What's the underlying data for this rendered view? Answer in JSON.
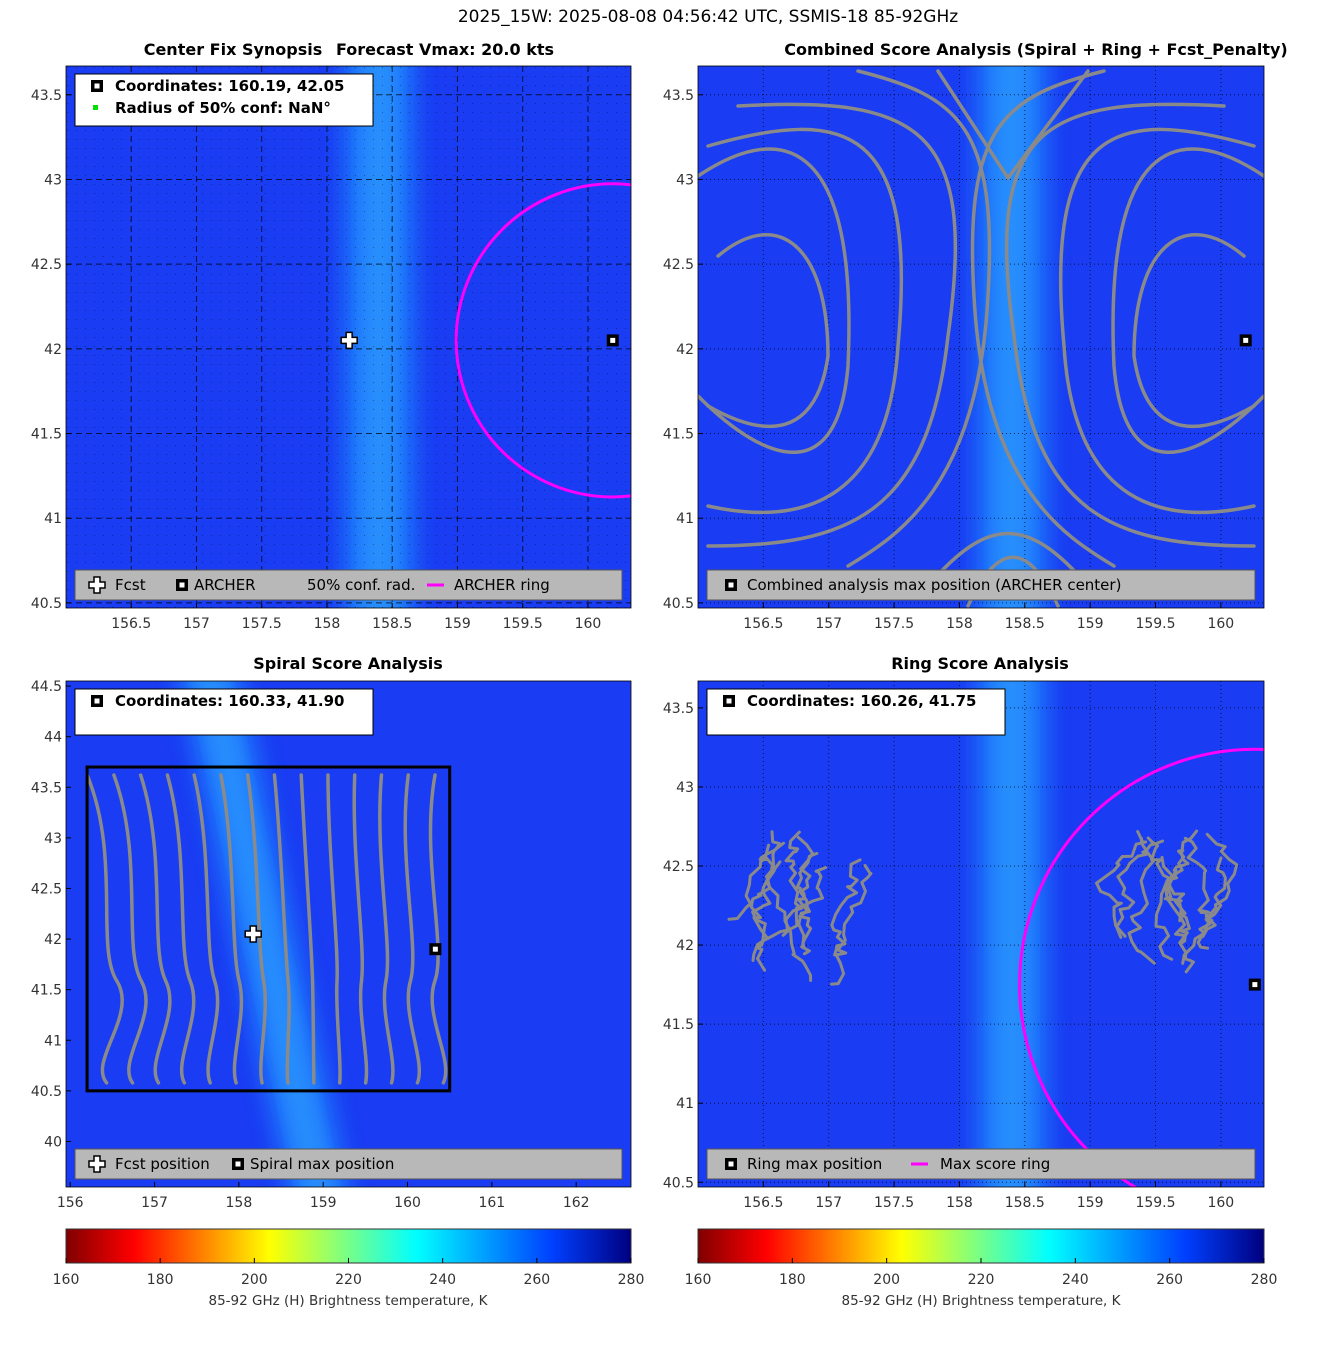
{
  "figure": {
    "title": "2025_15W: 2025-08-08 04:56:42 UTC, SSMIS-18 85-92GHz"
  },
  "colors": {
    "ring": "#ff00ff",
    "contour": "#8a8a8a",
    "field_base": "#1a3cf2",
    "field_warm_band": "#1f8fff",
    "legend_bg": "#b8b8b8",
    "green_dot": "#00e000"
  },
  "chart_data": [
    {
      "type": "heatmap",
      "id": "center_fix",
      "title_left": "Center Fix Synopsis",
      "title_right": "Forecast Vmax: 20.0 kts",
      "xlim": [
        156.0,
        160.33
      ],
      "ylim": [
        40.47,
        43.67
      ],
      "xticks": [
        "156.5",
        "157",
        "157.5",
        "158",
        "158.5",
        "159",
        "159.5",
        "160"
      ],
      "yticks": [
        "40.5",
        "41",
        "41.5",
        "42",
        "42.5",
        "43",
        "43.5"
      ],
      "grid": true,
      "band_center_lon": 158.4,
      "info_lines": [
        "Coordinates: 160.19, 42.05",
        "Radius of 50% conf: NaN°"
      ],
      "legend": [
        "Fcst",
        "ARCHER",
        "50% conf. rad.",
        "ARCHER ring"
      ],
      "fcst_marker": [
        158.17,
        42.05
      ],
      "archer_marker": [
        160.19,
        42.05
      ],
      "ring": {
        "center": [
          160.19,
          42.05
        ],
        "radius_deg": 1.2
      }
    },
    {
      "type": "heatmap",
      "id": "combined",
      "title": "Combined Score Analysis (Spiral + Ring + Fcst_Penalty)",
      "xlim": [
        156.0,
        160.33
      ],
      "ylim": [
        40.47,
        43.67
      ],
      "xticks": [
        "156.5",
        "157",
        "157.5",
        "158",
        "158.5",
        "159",
        "159.5",
        "160"
      ],
      "yticks": [
        "40.5",
        "41",
        "41.5",
        "42",
        "42.5",
        "43",
        "43.5"
      ],
      "grid": true,
      "band_center_lon": 158.4,
      "legend": [
        "Combined analysis max position (ARCHER center)"
      ],
      "archer_marker": [
        160.19,
        42.05
      ],
      "contours": "saddle"
    },
    {
      "type": "heatmap",
      "id": "spiral",
      "title": "Spiral Score Analysis",
      "xlim": [
        155.95,
        162.65
      ],
      "ylim": [
        39.55,
        44.55
      ],
      "xticks": [
        "156",
        "157",
        "158",
        "159",
        "160",
        "161",
        "162"
      ],
      "yticks": [
        "40",
        "40.5",
        "41",
        "41.5",
        "42",
        "42.5",
        "43",
        "43.5",
        "44",
        "44.5"
      ],
      "grid": false,
      "band_center_lon": 158.3,
      "info_lines": [
        "Coordinates: 160.33, 41.90"
      ],
      "legend": [
        "Fcst position",
        "Spiral max position"
      ],
      "fcst_marker": [
        158.17,
        42.05
      ],
      "spiral_marker": [
        160.33,
        41.9
      ],
      "box": {
        "lon": [
          156.2,
          160.5
        ],
        "lat": [
          40.5,
          43.7
        ]
      },
      "contours": "vertical"
    },
    {
      "type": "heatmap",
      "id": "ring",
      "title": "Ring Score Analysis",
      "xlim": [
        156.0,
        160.33
      ],
      "ylim": [
        40.47,
        43.67
      ],
      "xticks": [
        "156.5",
        "157",
        "157.5",
        "158",
        "158.5",
        "159",
        "159.5",
        "160"
      ],
      "yticks": [
        "40.5",
        "41",
        "41.5",
        "42",
        "42.5",
        "43",
        "43.5"
      ],
      "grid": true,
      "band_center_lon": 158.4,
      "info_lines": [
        "Coordinates: 160.26, 41.75"
      ],
      "legend": [
        "Ring max position",
        "Max score ring"
      ],
      "ring_marker": [
        160.26,
        41.75
      ],
      "ring": {
        "center": [
          160.26,
          41.75
        ],
        "radius_deg": 1.8
      },
      "contours": "noisy"
    }
  ],
  "colorbars": [
    {
      "ticks": [
        "160",
        "180",
        "200",
        "220",
        "240",
        "260",
        "280"
      ],
      "label": "85-92 GHz (H) Brightness temperature, K"
    },
    {
      "ticks": [
        "160",
        "180",
        "200",
        "220",
        "240",
        "260",
        "280"
      ],
      "label": "85-92 GHz (H) Brightness temperature, K"
    }
  ]
}
